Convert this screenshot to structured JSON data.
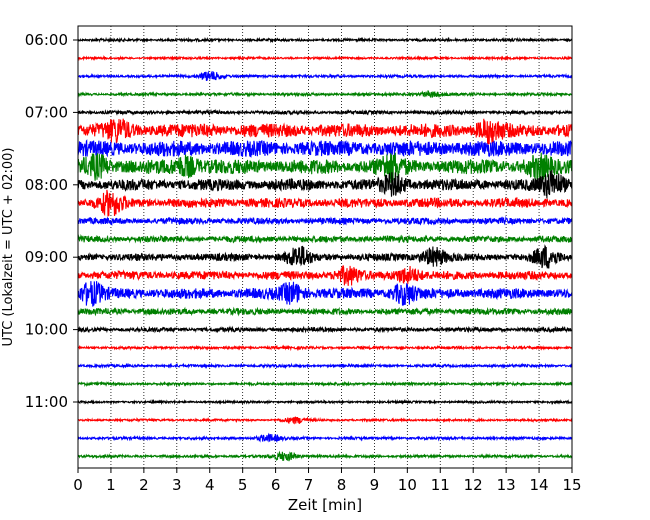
{
  "chart_data": {
    "type": "line",
    "title": "",
    "xlabel": "Zeit  [min]",
    "ylabel": "UTC (Lokalzeit = UTC + 02:00)",
    "xlim": [
      0,
      15
    ],
    "x_ticks": [
      0,
      1,
      2,
      3,
      4,
      5,
      6,
      7,
      8,
      9,
      10,
      11,
      12,
      13,
      14,
      15
    ],
    "x_tick_labels": [
      "0",
      "1",
      "2",
      "3",
      "4",
      "5",
      "6",
      "7",
      "8",
      "9",
      "10",
      "11",
      "12",
      "13",
      "14",
      "15"
    ],
    "y_tick_labels": [
      "06:00",
      "07:00",
      "08:00",
      "09:00",
      "10:00",
      "11:00"
    ],
    "grid": "vertical dotted",
    "colors": [
      "#000000",
      "#ff0000",
      "#0000ff",
      "#008000"
    ],
    "rows": [
      {
        "start": "06:00",
        "color": "#000000",
        "amplitude": 0.12
      },
      {
        "start": "06:15",
        "color": "#ff0000",
        "amplitude": 0.1
      },
      {
        "start": "06:30",
        "color": "#0000ff",
        "amplitude": 0.12
      },
      {
        "start": "06:45",
        "color": "#008000",
        "amplitude": 0.12
      },
      {
        "start": "07:00",
        "color": "#000000",
        "amplitude": 0.16
      },
      {
        "start": "07:15",
        "color": "#ff0000",
        "amplitude": 0.65
      },
      {
        "start": "07:30",
        "color": "#0000ff",
        "amplitude": 0.75
      },
      {
        "start": "07:45",
        "color": "#008000",
        "amplitude": 0.7
      },
      {
        "start": "08:00",
        "color": "#000000",
        "amplitude": 0.55
      },
      {
        "start": "08:15",
        "color": "#ff0000",
        "amplitude": 0.45
      },
      {
        "start": "08:30",
        "color": "#0000ff",
        "amplitude": 0.3
      },
      {
        "start": "08:45",
        "color": "#008000",
        "amplitude": 0.3
      },
      {
        "start": "09:00",
        "color": "#000000",
        "amplitude": 0.35
      },
      {
        "start": "09:15",
        "color": "#ff0000",
        "amplitude": 0.4
      },
      {
        "start": "09:30",
        "color": "#0000ff",
        "amplitude": 0.5
      },
      {
        "start": "09:45",
        "color": "#008000",
        "amplitude": 0.3
      },
      {
        "start": "10:00",
        "color": "#000000",
        "amplitude": 0.2
      },
      {
        "start": "10:15",
        "color": "#ff0000",
        "amplitude": 0.12
      },
      {
        "start": "10:30",
        "color": "#0000ff",
        "amplitude": 0.12
      },
      {
        "start": "10:45",
        "color": "#008000",
        "amplitude": 0.12
      },
      {
        "start": "11:00",
        "color": "#000000",
        "amplitude": 0.1
      },
      {
        "start": "11:15",
        "color": "#ff0000",
        "amplitude": 0.1
      },
      {
        "start": "11:30",
        "color": "#0000ff",
        "amplitude": 0.12
      },
      {
        "start": "11:45",
        "color": "#008000",
        "amplitude": 0.12
      }
    ],
    "bursts": [
      {
        "row": 2,
        "x": 4.0,
        "amplitude": 0.5
      },
      {
        "row": 3,
        "x": 10.7,
        "amplitude": 0.3
      },
      {
        "row": 5,
        "x": 1.2,
        "amplitude": 0.8
      },
      {
        "row": 5,
        "x": 12.5,
        "amplitude": 0.9
      },
      {
        "row": 7,
        "x": 0.6,
        "amplitude": 0.9
      },
      {
        "row": 7,
        "x": 3.3,
        "amplitude": 0.8
      },
      {
        "row": 7,
        "x": 9.5,
        "amplitude": 1.0
      },
      {
        "row": 7,
        "x": 14.0,
        "amplitude": 0.8
      },
      {
        "row": 8,
        "x": 9.6,
        "amplitude": 0.9
      },
      {
        "row": 8,
        "x": 14.4,
        "amplitude": 1.2
      },
      {
        "row": 9,
        "x": 1.0,
        "amplitude": 1.1
      },
      {
        "row": 12,
        "x": 6.7,
        "amplitude": 1.0
      },
      {
        "row": 12,
        "x": 10.8,
        "amplitude": 0.9
      },
      {
        "row": 12,
        "x": 14.2,
        "amplitude": 1.0
      },
      {
        "row": 13,
        "x": 8.2,
        "amplitude": 0.8
      },
      {
        "row": 13,
        "x": 10.0,
        "amplitude": 0.8
      },
      {
        "row": 14,
        "x": 0.4,
        "amplitude": 1.0
      },
      {
        "row": 14,
        "x": 6.5,
        "amplitude": 0.9
      },
      {
        "row": 14,
        "x": 9.9,
        "amplitude": 0.9
      },
      {
        "row": 21,
        "x": 6.6,
        "amplitude": 0.3
      },
      {
        "row": 22,
        "x": 5.8,
        "amplitude": 0.35
      },
      {
        "row": 23,
        "x": 6.3,
        "amplitude": 0.45
      }
    ]
  }
}
